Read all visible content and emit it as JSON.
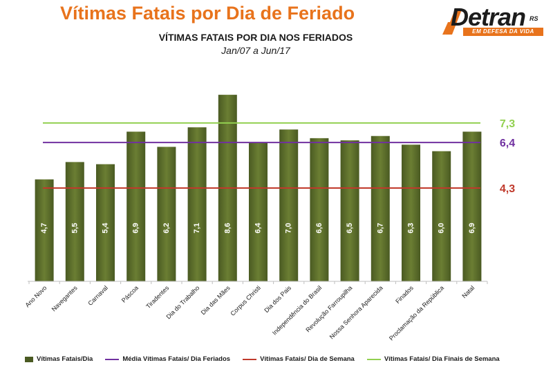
{
  "header": {
    "title": "Vítimas Fatais por Dia de Feriado",
    "subtitle": "VÍTIMAS FATAIS POR DIA NOS FERIADOS",
    "period": "Jan/07 a Jun/17"
  },
  "logo": {
    "name": "Detran",
    "suffix": "RS",
    "tagline": "EM DEFESA DA VIDA"
  },
  "colors": {
    "bar": "#4a5a22",
    "bar_top": "#6b7e33",
    "weekend_line": "#92d050",
    "average_line": "#7030a0",
    "weekday_line": "#c0392b",
    "title": "#e8731c"
  },
  "chart_data": {
    "type": "bar",
    "categories": [
      "Ano Novo",
      "Navegantes",
      "Carnaval",
      "Páscoa",
      "Tiradentes",
      "Dia do Trabalho",
      "Dia das Mães",
      "Corpus Christi",
      "Dia dos Pais",
      "Independência do Brasil",
      "Revolução Farroupilha",
      "Nossa Senhora Aparecida",
      "Finados",
      "Proclamação da República",
      "Natal"
    ],
    "values": [
      4.7,
      5.5,
      5.4,
      6.9,
      6.2,
      7.1,
      8.6,
      6.4,
      7.0,
      6.6,
      6.5,
      6.7,
      6.3,
      6.0,
      6.9
    ],
    "value_labels": [
      "4,7",
      "5,5",
      "5,4",
      "6,9",
      "6,2",
      "7,1",
      "8,6",
      "6,4",
      "7,0",
      "6,6",
      "6,5",
      "6,7",
      "6,3",
      "6,0",
      "6,9"
    ],
    "series_name": "Vítimas Fatais/Dia",
    "reference_lines": [
      {
        "name": "Vítimas Fatais/ Dia Finais de Semana",
        "value": 7.3,
        "label": "7,3",
        "color": "#92d050"
      },
      {
        "name": "Média Vítimas Fatais/ Dia Feriados",
        "value": 6.4,
        "label": "6,4",
        "color": "#7030a0"
      },
      {
        "name": "Vítimas Fatais/ Dia de Semana",
        "value": 4.3,
        "label": "4,3",
        "color": "#c0392b"
      }
    ],
    "ylim": [
      0,
      9.4
    ],
    "grid": false,
    "legend_position": "bottom"
  },
  "legend": [
    {
      "label": "Vítimas Fatais/Dia",
      "kind": "box",
      "color": "#4a5a22"
    },
    {
      "label": "Média Vítimas Fatais/ Dia Feriados",
      "kind": "line",
      "color": "#7030a0"
    },
    {
      "label": "Vítimas Fatais/ Dia de Semana",
      "kind": "line",
      "color": "#c0392b"
    },
    {
      "label": "Vítimas Fatais/ Dia Finais de Semana",
      "kind": "line",
      "color": "#92d050"
    }
  ]
}
